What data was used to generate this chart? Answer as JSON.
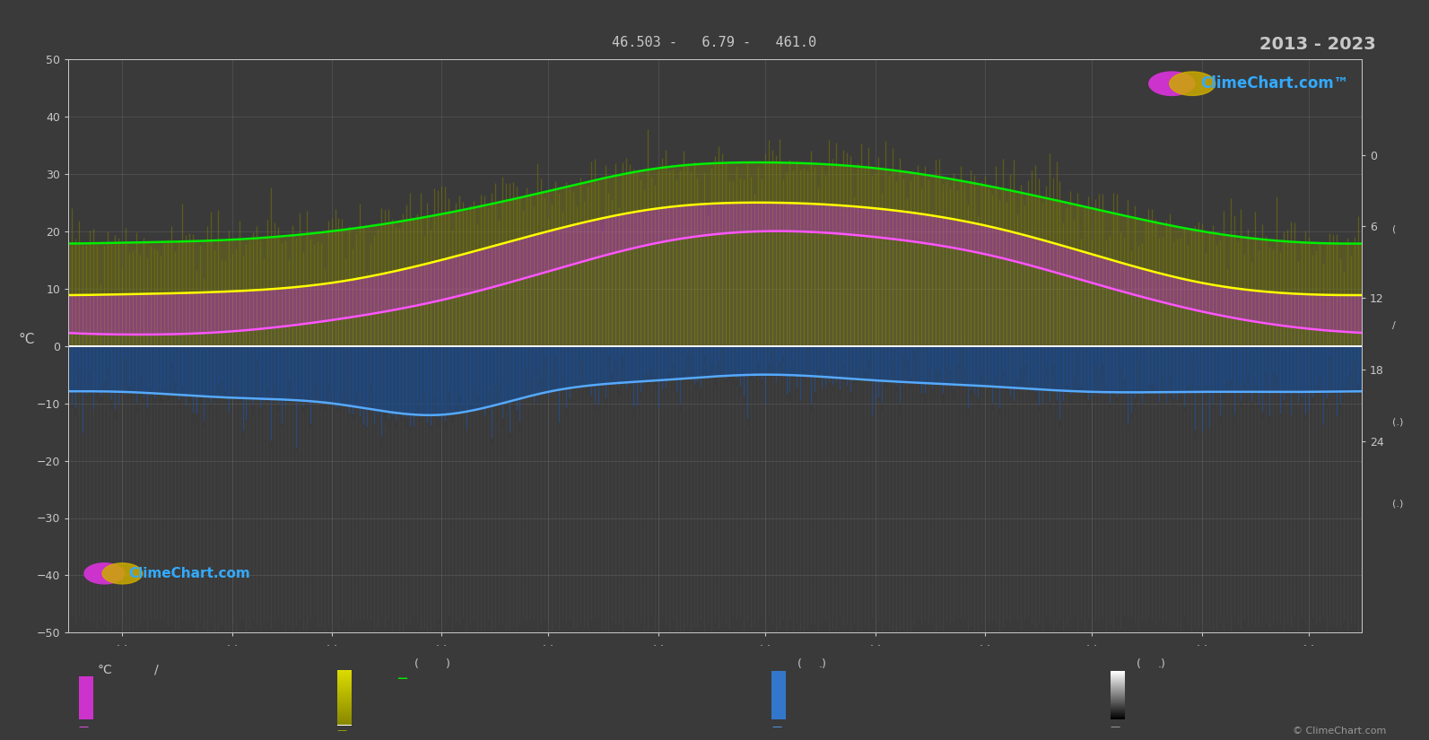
{
  "title_top": "46.503 -   6.79 -   461.0",
  "title_year": "2013 - 2023",
  "bg_color": "#3a3a3a",
  "text_color": "#c8c8c8",
  "grid_color": "#888888",
  "ylim_left": [
    -50,
    50
  ],
  "right_yticks": [
    0,
    6,
    12,
    18,
    24
  ],
  "right_ylim": [
    40,
    -8
  ],
  "n_days": 365,
  "green_monthly": [
    18,
    18.5,
    20,
    23,
    27,
    31,
    32,
    31,
    28,
    24,
    20,
    18
  ],
  "yellow_monthly": [
    9,
    9.5,
    11,
    15,
    20,
    24,
    25,
    24,
    21,
    16,
    11,
    9
  ],
  "magenta_monthly": [
    2,
    2.5,
    4.5,
    8,
    13,
    18,
    20,
    19,
    16,
    11,
    6,
    3
  ],
  "blue_monthly": [
    -8,
    -9,
    -10,
    -12,
    -8,
    -6,
    -5,
    -6,
    -7,
    -8,
    -8,
    -8
  ],
  "white_val": 0.0,
  "logo_color_left": "#cc33cc",
  "logo_color_right": "#ccaa00",
  "logo_text_color": "#33aaff",
  "copyright": "© ClimeChart.com"
}
